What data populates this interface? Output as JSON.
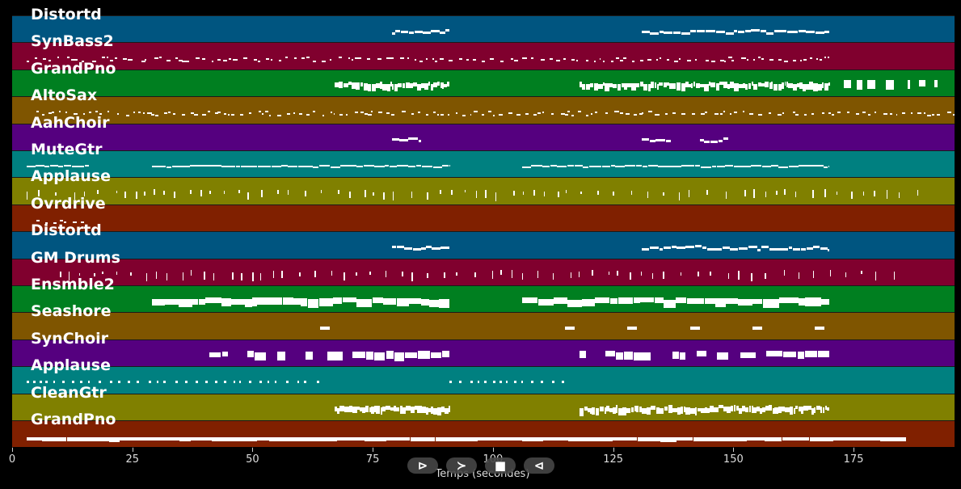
{
  "tracks": [
    {
      "name": "Distortd",
      "color": "#005580"
    },
    {
      "name": "SynBass2",
      "color": "#80002e"
    },
    {
      "name": "GrandPno",
      "color": "#007f20"
    },
    {
      "name": "AltoSax",
      "color": "#7f5500"
    },
    {
      "name": "AahChoir",
      "color": "#55007f"
    },
    {
      "name": "MuteGtr",
      "color": "#008080"
    },
    {
      "name": "Applause",
      "color": "#808000"
    },
    {
      "name": "Ovrdrive",
      "color": "#802000"
    },
    {
      "name": "Distortd",
      "color": "#005580"
    },
    {
      "name": "GM Drums",
      "color": "#80002e"
    },
    {
      "name": "Ensmble2",
      "color": "#007f20"
    },
    {
      "name": "Seashore",
      "color": "#7f5500"
    },
    {
      "name": "SynChoir",
      "color": "#55007f"
    },
    {
      "name": "Applause",
      "color": "#008080"
    },
    {
      "name": "CleanGtr",
      "color": "#808000"
    },
    {
      "name": "GrandPno",
      "color": "#802000"
    }
  ],
  "axis": {
    "xlabel": "Temps (secondes)",
    "xmin": 0,
    "xmax": 196,
    "ticks": [
      "0",
      "25",
      "50",
      "75",
      "100",
      "125",
      "150",
      "175"
    ]
  },
  "controls": {
    "play_label": "⊳",
    "next_label": "≻",
    "stop_label": "■",
    "prev_label": "⊲"
  }
}
